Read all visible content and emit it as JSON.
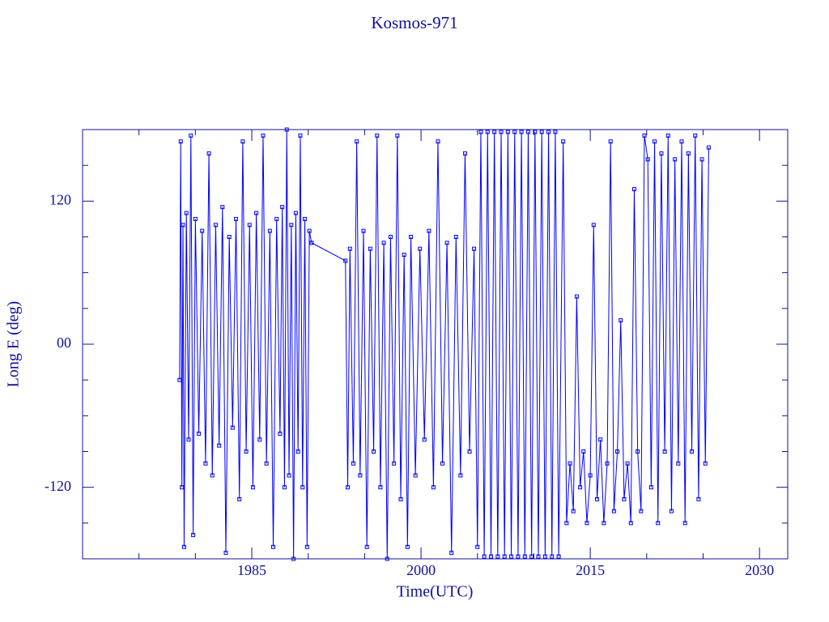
{
  "chart_data": {
    "type": "line",
    "title": "Kosmos-971",
    "xlabel": "Time(UTC)",
    "ylabel": "Long E (deg)",
    "color": "#0000ff",
    "xlim": [
      1970,
      2032.5
    ],
    "ylim": [
      -180,
      180
    ],
    "xticks": [
      1985,
      2000,
      2015,
      2030
    ],
    "xminorticks": [
      1975,
      1980,
      1990,
      1995,
      2005,
      2010,
      2020,
      2025
    ],
    "yticks": [
      -120,
      {
        "value": 0,
        "label": "00"
      },
      120
    ],
    "yminorticks": [
      -150,
      -90,
      -60,
      -30,
      30,
      60,
      90,
      150
    ],
    "x": [
      1978.6,
      1978.7,
      1978.8,
      1978.9,
      1979.0,
      1979.2,
      1979.4,
      1979.6,
      1979.8,
      1980.0,
      1980.3,
      1980.6,
      1980.9,
      1981.2,
      1981.5,
      1981.8,
      1982.1,
      1982.4,
      1982.7,
      1983.0,
      1983.3,
      1983.6,
      1983.9,
      1984.2,
      1984.5,
      1984.8,
      1985.1,
      1985.4,
      1985.7,
      1986.0,
      1986.3,
      1986.6,
      1986.9,
      1987.2,
      1987.5,
      1987.7,
      1987.9,
      1988.1,
      1988.3,
      1988.5,
      1988.7,
      1988.9,
      1989.1,
      1989.3,
      1989.5,
      1989.7,
      1989.9,
      1990.1,
      1990.3,
      1993.3,
      1993.5,
      1993.7,
      1994.0,
      1994.3,
      1994.6,
      1994.9,
      1995.2,
      1995.5,
      1995.8,
      1996.1,
      1996.4,
      1996.7,
      1997.0,
      1997.3,
      1997.6,
      1997.9,
      1998.2,
      1998.5,
      1998.8,
      1999.1,
      1999.5,
      1999.9,
      2000.3,
      2000.7,
      2001.1,
      2001.5,
      2001.9,
      2002.3,
      2002.7,
      2003.1,
      2003.5,
      2003.9,
      2004.3,
      2004.7,
      2005.0,
      2005.3,
      2005.6,
      2005.9,
      2006.2,
      2006.5,
      2006.8,
      2007.1,
      2007.4,
      2007.7,
      2008.0,
      2008.3,
      2008.6,
      2008.9,
      2009.2,
      2009.5,
      2009.8,
      2010.1,
      2010.4,
      2010.7,
      2011.0,
      2011.3,
      2011.6,
      2011.9,
      2012.2,
      2012.6,
      2012.9,
      2013.2,
      2013.5,
      2013.8,
      2014.1,
      2014.4,
      2014.7,
      2015.0,
      2015.3,
      2015.6,
      2015.9,
      2016.2,
      2016.5,
      2016.8,
      2017.1,
      2017.4,
      2017.7,
      2018.0,
      2018.3,
      2018.6,
      2018.9,
      2019.2,
      2019.5,
      2019.8,
      2020.1,
      2020.4,
      2020.7,
      2021.0,
      2021.3,
      2021.6,
      2021.9,
      2022.2,
      2022.5,
      2022.8,
      2023.1,
      2023.4,
      2023.7,
      2024.0,
      2024.3,
      2024.6,
      2024.9,
      2025.2,
      2025.5
    ],
    "values": [
      -30,
      170,
      -120,
      100,
      -170,
      110,
      -80,
      175,
      -160,
      105,
      -75,
      95,
      -100,
      160,
      -110,
      100,
      -85,
      115,
      -175,
      90,
      -70,
      105,
      -130,
      170,
      -90,
      100,
      -120,
      110,
      -80,
      175,
      -100,
      95,
      -170,
      105,
      -75,
      115,
      -120,
      180,
      -110,
      100,
      -180,
      110,
      -90,
      175,
      -120,
      105,
      -170,
      95,
      85,
      70,
      -120,
      80,
      -100,
      170,
      -110,
      95,
      -170,
      80,
      -90,
      175,
      -120,
      85,
      -180,
      90,
      -100,
      175,
      -130,
      75,
      -170,
      90,
      -110,
      80,
      -80,
      95,
      -120,
      170,
      -100,
      85,
      -175,
      90,
      -110,
      160,
      -90,
      80,
      -170,
      178,
      -178,
      178,
      -178,
      178,
      -178,
      178,
      -178,
      178,
      -178,
      178,
      -178,
      178,
      -178,
      178,
      -178,
      178,
      -178,
      178,
      -178,
      178,
      -178,
      178,
      -178,
      170,
      -150,
      -100,
      -140,
      40,
      -120,
      -90,
      -150,
      -110,
      100,
      -130,
      -80,
      -150,
      -100,
      170,
      -140,
      -90,
      20,
      -130,
      -100,
      -150,
      130,
      -90,
      -140,
      175,
      155,
      -120,
      170,
      -150,
      160,
      -90,
      175,
      -140,
      155,
      -100,
      170,
      -150,
      160,
      -90,
      175,
      -130,
      155,
      -100,
      165
    ]
  }
}
